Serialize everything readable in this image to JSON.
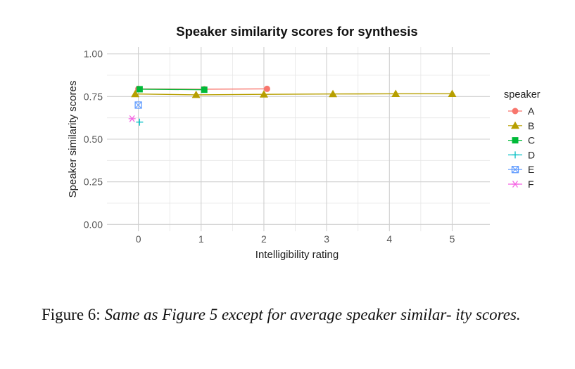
{
  "chart_data": {
    "type": "line",
    "title": "Speaker similarity scores for synthesis",
    "xlabel": "Intelligibility rating",
    "ylabel": "Speaker similarity scores",
    "xlim": [
      -0.5,
      5.6
    ],
    "ylim": [
      -0.04,
      1.04
    ],
    "xticks": [
      0,
      1,
      2,
      3,
      4,
      5
    ],
    "xtick_labels": [
      "0",
      "1",
      "2",
      "3",
      "4",
      "5"
    ],
    "yticks": [
      0,
      0.25,
      0.5,
      0.75,
      1.0
    ],
    "ytick_labels": [
      "0.00",
      "0.25",
      "0.50",
      "0.75",
      "1.00"
    ],
    "grid": true,
    "legend": {
      "title": "speaker",
      "position": "right"
    },
    "series": [
      {
        "name": "A",
        "color": "#F8766D",
        "marker": "circle",
        "points": [
          [
            0.0,
            0.795
          ],
          [
            1.05,
            0.793
          ],
          [
            2.05,
            0.795
          ]
        ]
      },
      {
        "name": "B",
        "color": "#B79F00",
        "marker": "triangle",
        "points": [
          [
            -0.05,
            0.765
          ],
          [
            0.92,
            0.76
          ],
          [
            2.0,
            0.763
          ],
          [
            3.1,
            0.765
          ],
          [
            4.1,
            0.766
          ],
          [
            5.0,
            0.766
          ]
        ]
      },
      {
        "name": "C",
        "color": "#00BA38",
        "marker": "square",
        "points": [
          [
            0.02,
            0.793
          ],
          [
            1.05,
            0.79
          ]
        ]
      },
      {
        "name": "D",
        "color": "#00BFC4",
        "marker": "plus",
        "points": [
          [
            0.02,
            0.6
          ]
        ]
      },
      {
        "name": "E",
        "color": "#619CFF",
        "marker": "square-cross",
        "points": [
          [
            0.0,
            0.7
          ]
        ]
      },
      {
        "name": "F",
        "color": "#F564E3",
        "marker": "asterisk",
        "points": [
          [
            -0.1,
            0.62
          ]
        ]
      }
    ]
  },
  "caption": {
    "lead": "Figure 6:",
    "body": "Same as Figure 5 except for average speaker similar- ity scores."
  }
}
